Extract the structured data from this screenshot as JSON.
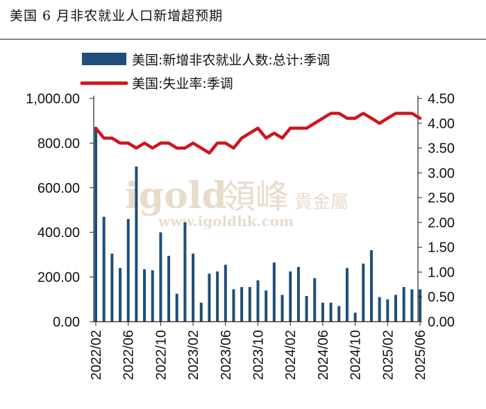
{
  "title": "美国 6 月非农就业人口新增超预期",
  "chart_data": {
    "type": "bar+line",
    "title": "美国 6 月非农就业人口新增超预期",
    "legend_position": "top",
    "x_tick_labels": [
      "2022/02",
      "2022/06",
      "2022/10",
      "2023/02",
      "2023/06",
      "2023/10",
      "2024/02",
      "2024/06",
      "2024/10",
      "2025/02",
      "2025/06"
    ],
    "x": [
      "2022/02",
      "2022/03",
      "2022/04",
      "2022/05",
      "2022/06",
      "2022/07",
      "2022/08",
      "2022/09",
      "2022/10",
      "2022/11",
      "2022/12",
      "2023/01",
      "2023/02",
      "2023/03",
      "2023/04",
      "2023/05",
      "2023/06",
      "2023/07",
      "2023/08",
      "2023/09",
      "2023/10",
      "2023/11",
      "2023/12",
      "2024/01",
      "2024/02",
      "2024/03",
      "2024/04",
      "2024/05",
      "2024/06",
      "2024/07",
      "2024/08",
      "2024/09",
      "2024/10",
      "2024/11",
      "2024/12",
      "2025/01",
      "2025/02",
      "2025/03",
      "2025/04",
      "2025/05",
      "2025/06"
    ],
    "left_axis": {
      "ylim": [
        0,
        1000
      ],
      "ticks": [
        "0.00",
        "200.00",
        "400.00",
        "600.00",
        "800.00",
        "1,000.00"
      ]
    },
    "right_axis": {
      "ylim": [
        0,
        4.5
      ],
      "ticks": [
        "0.00",
        "0.50",
        "1.00",
        "1.50",
        "2.00",
        "2.50",
        "3.00",
        "3.50",
        "4.00",
        "4.50"
      ]
    },
    "series": [
      {
        "name": "美国:新增非农就业人数:总计:季调",
        "type": "bar",
        "axis": "left",
        "color": "#1f4e79",
        "values": [
          870,
          470,
          305,
          240,
          460,
          695,
          235,
          230,
          400,
          295,
          125,
          445,
          305,
          85,
          215,
          225,
          255,
          145,
          155,
          155,
          185,
          140,
          265,
          120,
          225,
          245,
          115,
          195,
          85,
          85,
          70,
          240,
          40,
          260,
          320,
          110,
          100,
          120,
          155,
          145,
          145
        ]
      },
      {
        "name": "美国:失业率:季调",
        "type": "line",
        "axis": "right",
        "color": "#d0141c",
        "values": [
          3.9,
          3.7,
          3.7,
          3.6,
          3.6,
          3.5,
          3.6,
          3.5,
          3.6,
          3.6,
          3.5,
          3.5,
          3.6,
          3.5,
          3.4,
          3.6,
          3.6,
          3.5,
          3.7,
          3.8,
          3.9,
          3.7,
          3.8,
          3.7,
          3.9,
          3.9,
          3.9,
          4.0,
          4.1,
          4.2,
          4.2,
          4.1,
          4.1,
          4.2,
          4.1,
          4.0,
          4.1,
          4.2,
          4.2,
          4.2,
          4.1
        ]
      }
    ]
  },
  "watermark": {
    "brand": "igold",
    "cn": "領峰",
    "cn2": "貴金屬",
    "url": "www.igoldhk.com"
  }
}
